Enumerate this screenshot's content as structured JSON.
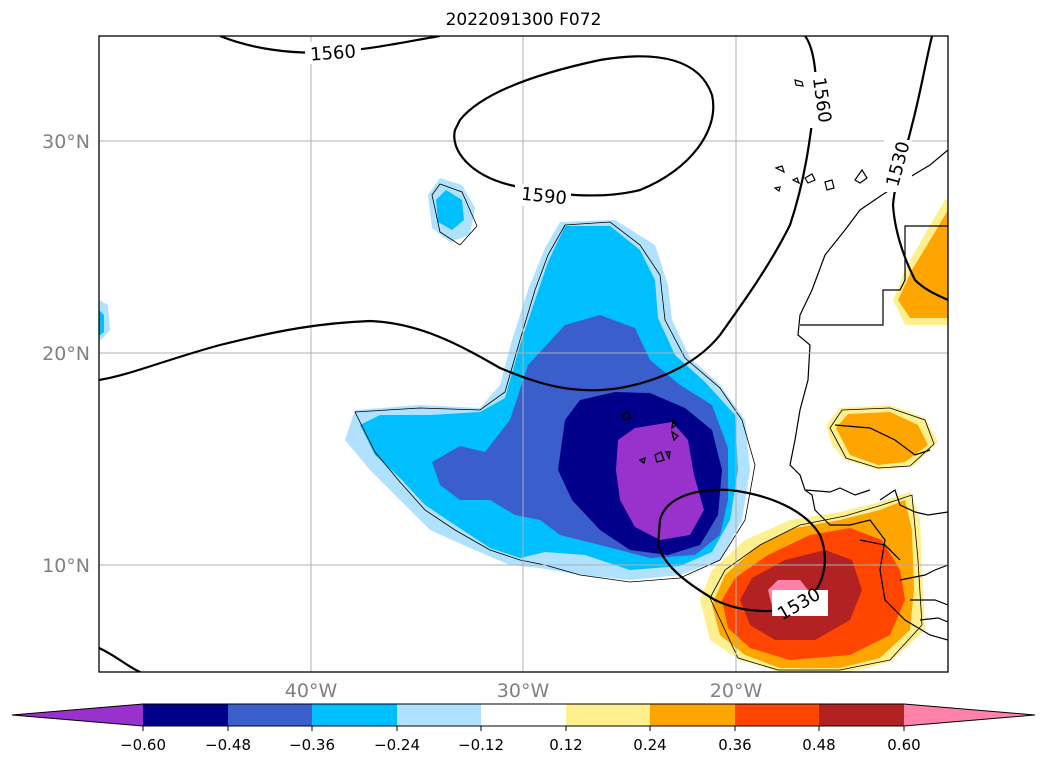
{
  "title": "2022091300 F072",
  "lat_labels": [
    "30°N",
    "20°N",
    "10°N"
  ],
  "lon_labels": [
    "40°W",
    "30°W",
    "20°W"
  ],
  "contour_labels": [
    "1560",
    "1590",
    "1560",
    "1530",
    "1530"
  ],
  "colorbar": {
    "tick_labels": [
      "−0.60",
      "−0.48",
      "−0.36",
      "−0.24",
      "−0.12",
      "0.12",
      "0.24",
      "0.36",
      "0.48",
      "0.60"
    ],
    "colors": [
      "#9932cc",
      "#00008b",
      "#3a5fcd",
      "#00bfff",
      "#b0e2ff",
      "#ffffff",
      "#fff08f",
      "#ffa500",
      "#ff4500",
      "#b22222",
      "#ff82ab"
    ]
  }
}
